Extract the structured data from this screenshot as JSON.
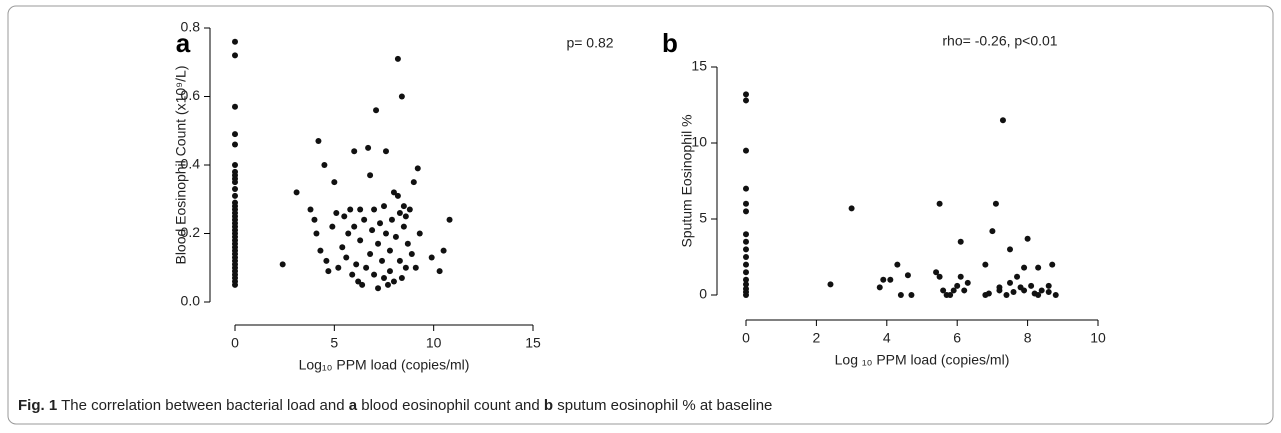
{
  "chart_data": [
    {
      "type": "scatter",
      "panel_label": "a",
      "annotation": "p= 0.82",
      "xlabel": "Log₁₀ PPM load (copies/ml)",
      "ylabel": "Blood Eosinophil Count (x10⁹/L)",
      "xlim": [
        0,
        15
      ],
      "xticks": [
        0,
        5,
        10,
        15
      ],
      "ylim": [
        0,
        0.8
      ],
      "yticks": [
        {
          "value": 0,
          "label": "0.0"
        },
        0.2,
        0.4,
        0.6,
        0.8
      ],
      "series": [
        {
          "color": "#111111",
          "x": [
            0,
            0,
            0,
            0,
            0,
            0,
            0,
            0,
            0,
            0,
            0,
            0,
            0,
            0,
            0,
            0,
            0,
            0,
            0,
            0,
            0,
            0,
            0,
            0,
            0,
            0,
            0,
            0,
            0,
            0,
            0,
            0,
            0,
            0,
            0,
            0,
            0,
            2.4,
            3.1,
            3.8,
            4.0,
            4.1,
            4.2,
            4.3,
            4.5,
            4.6,
            4.7,
            4.9,
            5.0,
            5.1,
            5.2,
            5.4,
            5.5,
            5.6,
            5.7,
            5.8,
            5.9,
            6.0,
            6.0,
            6.1,
            6.2,
            6.3,
            6.3,
            6.4,
            6.5,
            6.6,
            6.7,
            6.8,
            6.8,
            6.9,
            7.0,
            7.0,
            7.1,
            7.2,
            7.2,
            7.3,
            7.4,
            7.5,
            7.5,
            7.6,
            7.6,
            7.7,
            7.8,
            7.8,
            7.9,
            8.0,
            8.0,
            8.1,
            8.2,
            8.2,
            8.3,
            8.3,
            8.4,
            8.4,
            8.5,
            8.5,
            8.6,
            8.6,
            8.7,
            8.8,
            8.9,
            9.0,
            9.1,
            9.2,
            9.3,
            9.9,
            10.3,
            10.5,
            10.8
          ],
          "values": [
            0.76,
            0.72,
            0.57,
            0.49,
            0.46,
            0.4,
            0.38,
            0.37,
            0.36,
            0.35,
            0.33,
            0.31,
            0.29,
            0.28,
            0.27,
            0.26,
            0.25,
            0.24,
            0.23,
            0.22,
            0.21,
            0.2,
            0.19,
            0.18,
            0.17,
            0.16,
            0.15,
            0.14,
            0.13,
            0.12,
            0.11,
            0.1,
            0.09,
            0.08,
            0.07,
            0.06,
            0.05,
            0.11,
            0.32,
            0.27,
            0.24,
            0.2,
            0.47,
            0.15,
            0.4,
            0.12,
            0.09,
            0.22,
            0.35,
            0.26,
            0.1,
            0.16,
            0.25,
            0.13,
            0.2,
            0.27,
            0.08,
            0.44,
            0.22,
            0.11,
            0.06,
            0.27,
            0.18,
            0.05,
            0.24,
            0.1,
            0.45,
            0.14,
            0.37,
            0.21,
            0.08,
            0.27,
            0.56,
            0.17,
            0.04,
            0.23,
            0.12,
            0.28,
            0.07,
            0.44,
            0.2,
            0.05,
            0.15,
            0.09,
            0.24,
            0.32,
            0.06,
            0.19,
            0.71,
            0.31,
            0.12,
            0.26,
            0.07,
            0.6,
            0.28,
            0.22,
            0.1,
            0.25,
            0.17,
            0.27,
            0.14,
            0.35,
            0.1,
            0.39,
            0.2,
            0.13,
            0.09,
            0.15,
            0.24
          ]
        }
      ]
    },
    {
      "type": "scatter",
      "panel_label": "b",
      "annotation": "rho= -0.26, p<0.01",
      "xlabel": "Log ₁₀ PPM load (copies/ml)",
      "ylabel": "Sputum Eosinophil %",
      "xlim": [
        0,
        10
      ],
      "xticks": [
        0,
        2,
        4,
        6,
        8,
        10
      ],
      "ylim": [
        0,
        15
      ],
      "yticks": [
        0,
        5,
        10,
        15
      ],
      "series": [
        {
          "color": "#111111",
          "x": [
            0,
            0,
            0,
            0,
            0,
            0,
            0,
            0,
            0,
            0,
            0,
            0,
            0,
            0,
            0,
            0,
            0,
            2.4,
            3.0,
            3.8,
            3.9,
            4.1,
            4.3,
            4.4,
            4.6,
            4.7,
            5.4,
            5.5,
            5.5,
            5.6,
            5.7,
            5.8,
            5.9,
            6.0,
            6.1,
            6.1,
            6.2,
            6.3,
            6.8,
            6.8,
            6.9,
            7.0,
            7.1,
            7.2,
            7.2,
            7.3,
            7.4,
            7.5,
            7.5,
            7.6,
            7.7,
            7.8,
            7.9,
            7.9,
            8.0,
            8.1,
            8.2,
            8.3,
            8.3,
            8.4,
            8.6,
            8.6,
            8.7,
            8.8
          ],
          "values": [
            13.2,
            12.8,
            9.5,
            7.0,
            6.0,
            5.5,
            4.0,
            3.5,
            3.0,
            2.5,
            2.0,
            1.5,
            1.0,
            0.7,
            0.4,
            0.2,
            0.0,
            0.7,
            5.7,
            0.5,
            1.0,
            1.0,
            2.0,
            0.0,
            1.3,
            0.0,
            1.5,
            6.0,
            1.2,
            0.3,
            0.0,
            0.0,
            0.3,
            0.6,
            1.2,
            3.5,
            0.3,
            0.8,
            0.0,
            2.0,
            0.1,
            4.2,
            6.0,
            0.5,
            0.3,
            11.5,
            0.0,
            0.8,
            3.0,
            0.2,
            1.2,
            0.5,
            0.3,
            1.8,
            3.7,
            0.6,
            0.1,
            1.8,
            0.0,
            0.3,
            0.6,
            0.2,
            2.0,
            0.0
          ]
        }
      ]
    }
  ],
  "caption": [
    "Fig. 1",
    " The correlation between bacterial load and ",
    "a",
    " blood eosinophil count and ",
    "b",
    " sputum eosinophil % at baseline"
  ]
}
